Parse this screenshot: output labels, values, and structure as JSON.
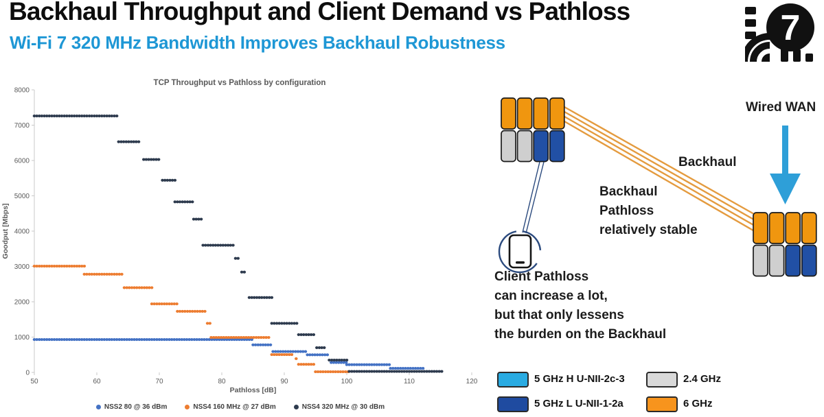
{
  "header": {
    "title": "Backhaul Throughput and Client Demand vs Pathloss",
    "subtitle": "Wi-Fi 7 320 MHz Bandwidth Improves Backhaul Robustness",
    "subtitle_color": "#1E97D5",
    "logo_text": "7"
  },
  "chart_data": {
    "type": "scatter",
    "title": "TCP Throughput vs Pathloss by configuration",
    "xlabel": "Pathloss [dB]",
    "ylabel": "Goodput [Mbps]",
    "xlim": [
      50,
      120
    ],
    "ylim": [
      0,
      8000
    ],
    "x_ticks": [
      50,
      60,
      70,
      80,
      90,
      100,
      110,
      120
    ],
    "y_ticks": [
      0,
      1000,
      2000,
      3000,
      4000,
      5000,
      6000,
      7000,
      8000
    ],
    "grid": false,
    "legend_position": "bottom",
    "point_step_db": 0.4,
    "series": [
      {
        "name": "NSS2 80 @ 36 dBm",
        "color": "#4472C4",
        "segments": [
          [
            50,
            85,
            930
          ],
          [
            85,
            88,
            780
          ],
          [
            88.2,
            93.6,
            590
          ],
          [
            93.7,
            97,
            500
          ],
          [
            97.5,
            100,
            280
          ],
          [
            100,
            107,
            220
          ],
          [
            107,
            112.5,
            115
          ]
        ]
      },
      {
        "name": "NSS4 160 MHz @ 27 dBm",
        "color": "#ED7D31",
        "segments": [
          [
            50,
            58,
            3010
          ],
          [
            58,
            64.3,
            2780
          ],
          [
            64.4,
            68.8,
            2400
          ],
          [
            68.8,
            72.8,
            1940
          ],
          [
            72.9,
            77.3,
            1730
          ],
          [
            77.7,
            78.1,
            1390
          ],
          [
            78.3,
            87.7,
            990
          ],
          [
            88,
            91.4,
            505
          ],
          [
            91.9,
            92.1,
            390
          ],
          [
            92.3,
            94.7,
            230
          ],
          [
            95,
            100.5,
            20
          ]
        ]
      },
      {
        "name": "NSS4 320 MHz @ 30 dBm",
        "color": "#2E3B4E",
        "segments": [
          [
            50,
            63.5,
            7260
          ],
          [
            63.5,
            67,
            6530
          ],
          [
            67.5,
            70,
            6030
          ],
          [
            70.5,
            72.5,
            5440
          ],
          [
            72.5,
            75.5,
            4830
          ],
          [
            75.5,
            77,
            4340
          ],
          [
            77,
            82,
            3600
          ],
          [
            82.2,
            82.8,
            3230
          ],
          [
            83.2,
            83.8,
            2840
          ],
          [
            84.4,
            88,
            2120
          ],
          [
            88,
            92.2,
            1390
          ],
          [
            92.3,
            95,
            1070
          ],
          [
            95.2,
            96.5,
            700
          ],
          [
            97.2,
            100,
            350
          ],
          [
            100.4,
            115.2,
            30
          ]
        ]
      }
    ]
  },
  "diagram": {
    "wired_wan_label": "Wired WAN",
    "backhaul_label": "Backhaul",
    "backhaul_note": [
      "Backhaul",
      "Pathloss",
      "relatively stable"
    ],
    "client_note": [
      "Client Pathloss",
      "can increase a lot,",
      "but that only lessens",
      "the burden on the Backhaul"
    ],
    "ap_top_row_color": "#F0960F",
    "ap_bottom_row_colors": [
      "#CFCFCF",
      "#CFCFCF",
      "#2150A5",
      "#2150A5"
    ],
    "backhaul_line_color": "#E49B3F",
    "client_link_color": "#2B4A7E",
    "arrow_color": "#2E9FD8"
  },
  "band_legend": {
    "items": [
      {
        "label": "5 GHz H U-NII-2c-3",
        "color": "#29ABE2"
      },
      {
        "label": "5 GHz L U-NII-1-2a",
        "color": "#1F4BA0"
      },
      {
        "label": "2.4 GHz",
        "color": "#D9D9D9"
      },
      {
        "label": "6 GHz",
        "color": "#F7941D"
      }
    ]
  }
}
